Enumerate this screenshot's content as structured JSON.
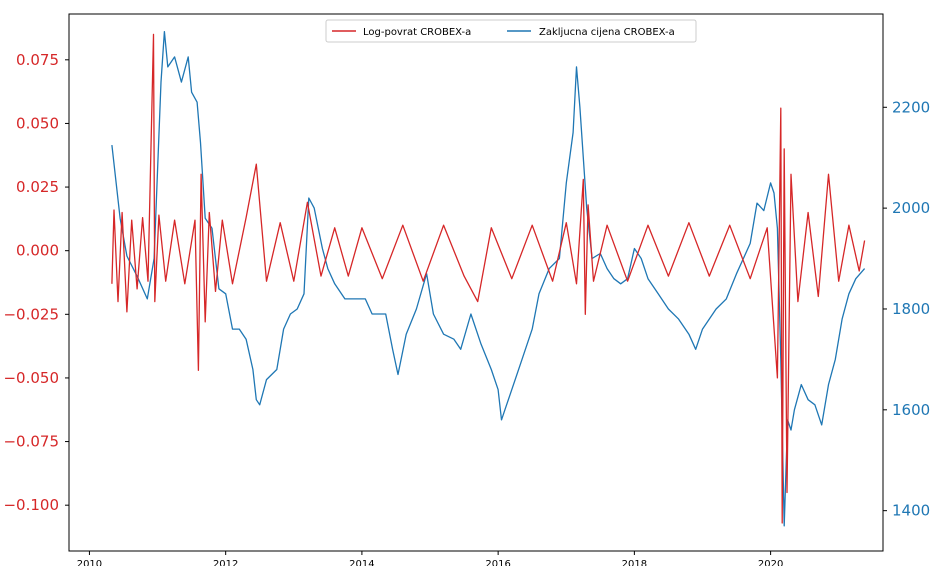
{
  "chart_data": {
    "type": "line",
    "title": "",
    "xlabel": "",
    "ylabel_left": "",
    "ylabel_right": "",
    "legend_position": "top-center",
    "grid": false,
    "x_ticks": [
      "2010",
      "2012",
      "2014",
      "2016",
      "2018",
      "2020"
    ],
    "y_left_ticks": [
      "0.075",
      "0.050",
      "0.025",
      "0.000",
      "−0.025",
      "−0.050",
      "−0.075",
      "−0.100"
    ],
    "y_right_ticks": [
      "2200",
      "2000",
      "1800",
      "1600",
      "1400"
    ],
    "xlim": [
      2009.7,
      2021.65
    ],
    "ylim_left": [
      -0.118,
      0.093
    ],
    "ylim_right": [
      1320,
      2385
    ],
    "colors": {
      "returns": "#d62728",
      "close": "#1f77b4"
    },
    "series": [
      {
        "name": "Log-povrat CROBEX-a",
        "axis": "left",
        "color": "#d62728",
        "points": [
          [
            2010.33,
            -0.013
          ],
          [
            2010.36,
            0.016
          ],
          [
            2010.42,
            -0.02
          ],
          [
            2010.48,
            0.015
          ],
          [
            2010.55,
            -0.024
          ],
          [
            2010.62,
            0.012
          ],
          [
            2010.7,
            -0.015
          ],
          [
            2010.78,
            0.013
          ],
          [
            2010.86,
            -0.012
          ],
          [
            2010.94,
            0.085
          ],
          [
            2010.96,
            -0.02
          ],
          [
            2011.02,
            0.014
          ],
          [
            2011.12,
            -0.012
          ],
          [
            2011.25,
            0.012
          ],
          [
            2011.4,
            -0.013
          ],
          [
            2011.55,
            0.012
          ],
          [
            2011.6,
            -0.047
          ],
          [
            2011.64,
            0.03
          ],
          [
            2011.7,
            -0.028
          ],
          [
            2011.76,
            0.015
          ],
          [
            2011.85,
            -0.016
          ],
          [
            2011.95,
            0.012
          ],
          [
            2012.1,
            -0.013
          ],
          [
            2012.3,
            0.013
          ],
          [
            2012.45,
            0.034
          ],
          [
            2012.6,
            -0.012
          ],
          [
            2012.8,
            0.011
          ],
          [
            2013.0,
            -0.012
          ],
          [
            2013.2,
            0.019
          ],
          [
            2013.4,
            -0.01
          ],
          [
            2013.6,
            0.009
          ],
          [
            2013.8,
            -0.01
          ],
          [
            2014.0,
            0.009
          ],
          [
            2014.3,
            -0.011
          ],
          [
            2014.6,
            0.01
          ],
          [
            2014.9,
            -0.012
          ],
          [
            2015.2,
            0.01
          ],
          [
            2015.5,
            -0.01
          ],
          [
            2015.7,
            -0.02
          ],
          [
            2015.9,
            0.009
          ],
          [
            2016.2,
            -0.011
          ],
          [
            2016.5,
            0.01
          ],
          [
            2016.8,
            -0.012
          ],
          [
            2017.0,
            0.011
          ],
          [
            2017.15,
            -0.013
          ],
          [
            2017.25,
            0.028
          ],
          [
            2017.28,
            -0.025
          ],
          [
            2017.32,
            0.018
          ],
          [
            2017.4,
            -0.012
          ],
          [
            2017.6,
            0.01
          ],
          [
            2017.9,
            -0.012
          ],
          [
            2018.2,
            0.01
          ],
          [
            2018.5,
            -0.01
          ],
          [
            2018.8,
            0.011
          ],
          [
            2019.1,
            -0.01
          ],
          [
            2019.4,
            0.01
          ],
          [
            2019.7,
            -0.011
          ],
          [
            2019.95,
            0.009
          ],
          [
            2020.1,
            -0.05
          ],
          [
            2020.15,
            0.056
          ],
          [
            2020.17,
            -0.107
          ],
          [
            2020.2,
            0.04
          ],
          [
            2020.24,
            -0.095
          ],
          [
            2020.3,
            0.03
          ],
          [
            2020.4,
            -0.02
          ],
          [
            2020.55,
            0.015
          ],
          [
            2020.7,
            -0.018
          ],
          [
            2020.85,
            0.03
          ],
          [
            2021.0,
            -0.012
          ],
          [
            2021.15,
            0.01
          ],
          [
            2021.3,
            -0.008
          ],
          [
            2021.38,
            0.004
          ]
        ]
      },
      {
        "name": "Zakljucna cijena CROBEX-a",
        "axis": "right",
        "color": "#1f77b4",
        "points": [
          [
            2010.33,
            2125
          ],
          [
            2010.38,
            2065
          ],
          [
            2010.45,
            1980
          ],
          [
            2010.55,
            1905
          ],
          [
            2010.7,
            1865
          ],
          [
            2010.85,
            1820
          ],
          [
            2010.95,
            1900
          ],
          [
            2011.05,
            2250
          ],
          [
            2011.1,
            2350
          ],
          [
            2011.15,
            2280
          ],
          [
            2011.25,
            2300
          ],
          [
            2011.35,
            2250
          ],
          [
            2011.45,
            2300
          ],
          [
            2011.5,
            2230
          ],
          [
            2011.58,
            2210
          ],
          [
            2011.63,
            2130
          ],
          [
            2011.7,
            1980
          ],
          [
            2011.8,
            1960
          ],
          [
            2011.9,
            1840
          ],
          [
            2012.0,
            1830
          ],
          [
            2012.1,
            1760
          ],
          [
            2012.2,
            1760
          ],
          [
            2012.3,
            1740
          ],
          [
            2012.4,
            1680
          ],
          [
            2012.45,
            1620
          ],
          [
            2012.5,
            1610
          ],
          [
            2012.6,
            1660
          ],
          [
            2012.75,
            1680
          ],
          [
            2012.85,
            1760
          ],
          [
            2012.95,
            1790
          ],
          [
            2013.05,
            1800
          ],
          [
            2013.15,
            1830
          ],
          [
            2013.22,
            2020
          ],
          [
            2013.3,
            2000
          ],
          [
            2013.42,
            1920
          ],
          [
            2013.5,
            1880
          ],
          [
            2013.6,
            1850
          ],
          [
            2013.75,
            1820
          ],
          [
            2013.9,
            1820
          ],
          [
            2014.05,
            1820
          ],
          [
            2014.15,
            1790
          ],
          [
            2014.25,
            1790
          ],
          [
            2014.35,
            1790
          ],
          [
            2014.45,
            1720
          ],
          [
            2014.53,
            1670
          ],
          [
            2014.65,
            1750
          ],
          [
            2014.8,
            1800
          ],
          [
            2014.95,
            1870
          ],
          [
            2015.05,
            1790
          ],
          [
            2015.2,
            1750
          ],
          [
            2015.35,
            1740
          ],
          [
            2015.45,
            1720
          ],
          [
            2015.6,
            1790
          ],
          [
            2015.75,
            1730
          ],
          [
            2015.9,
            1680
          ],
          [
            2016.0,
            1640
          ],
          [
            2016.05,
            1580
          ],
          [
            2016.1,
            1600
          ],
          [
            2016.2,
            1640
          ],
          [
            2016.35,
            1700
          ],
          [
            2016.5,
            1760
          ],
          [
            2016.6,
            1830
          ],
          [
            2016.75,
            1880
          ],
          [
            2016.9,
            1900
          ],
          [
            2017.0,
            2050
          ],
          [
            2017.1,
            2150
          ],
          [
            2017.15,
            2280
          ],
          [
            2017.2,
            2200
          ],
          [
            2017.3,
            2000
          ],
          [
            2017.38,
            1900
          ],
          [
            2017.5,
            1910
          ],
          [
            2017.6,
            1880
          ],
          [
            2017.7,
            1860
          ],
          [
            2017.8,
            1850
          ],
          [
            2017.9,
            1860
          ],
          [
            2018.0,
            1920
          ],
          [
            2018.1,
            1900
          ],
          [
            2018.2,
            1860
          ],
          [
            2018.35,
            1830
          ],
          [
            2018.5,
            1800
          ],
          [
            2018.65,
            1780
          ],
          [
            2018.8,
            1750
          ],
          [
            2018.9,
            1720
          ],
          [
            2019.0,
            1760
          ],
          [
            2019.2,
            1800
          ],
          [
            2019.35,
            1820
          ],
          [
            2019.5,
            1870
          ],
          [
            2019.6,
            1900
          ],
          [
            2019.7,
            1930
          ],
          [
            2019.8,
            2010
          ],
          [
            2019.9,
            1995
          ],
          [
            2020.0,
            2050
          ],
          [
            2020.05,
            2030
          ],
          [
            2020.1,
            1960
          ],
          [
            2020.15,
            1700
          ],
          [
            2020.2,
            1370
          ],
          [
            2020.25,
            1580
          ],
          [
            2020.3,
            1560
          ],
          [
            2020.35,
            1600
          ],
          [
            2020.45,
            1650
          ],
          [
            2020.55,
            1620
          ],
          [
            2020.65,
            1610
          ],
          [
            2020.75,
            1570
          ],
          [
            2020.85,
            1650
          ],
          [
            2020.95,
            1700
          ],
          [
            2021.05,
            1780
          ],
          [
            2021.15,
            1830
          ],
          [
            2021.25,
            1860
          ],
          [
            2021.38,
            1880
          ]
        ]
      }
    ]
  }
}
